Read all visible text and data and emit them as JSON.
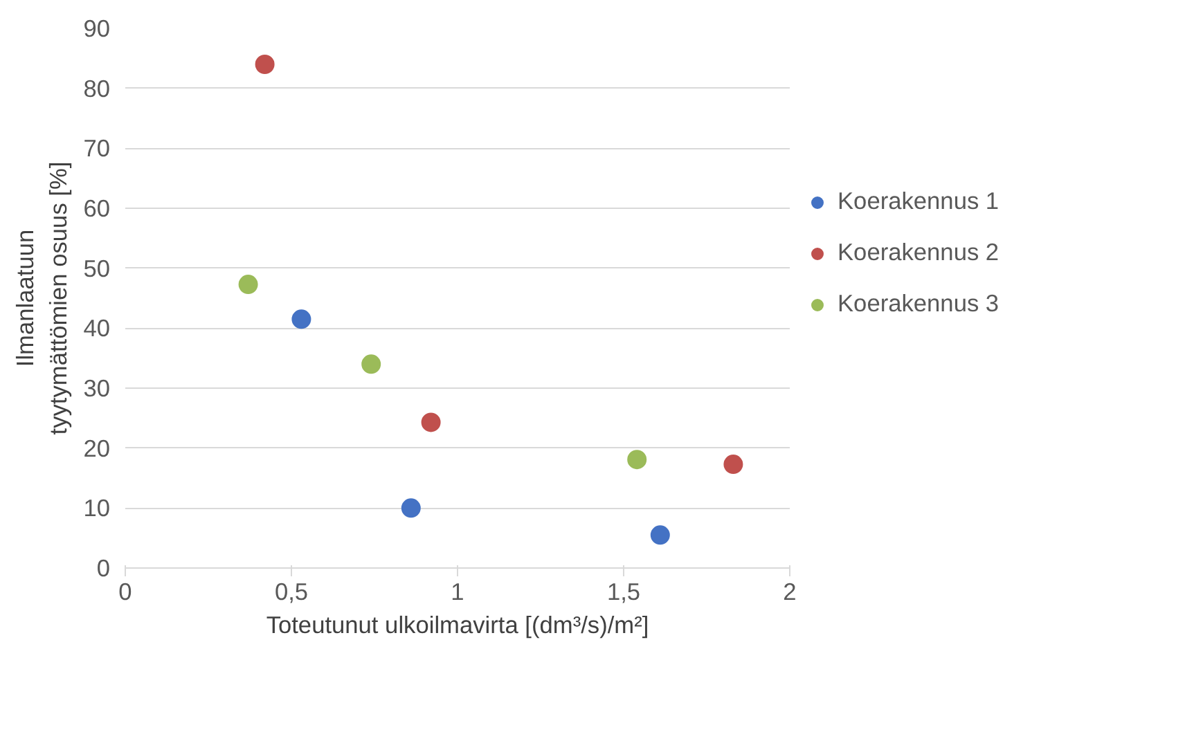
{
  "chart_data": {
    "type": "scatter",
    "xlabel": "Toteutunut ulkoilmavirta [(dm³/s)/m²]",
    "ylabel": "Ilmanlaatuun\ntyytymättömien osuus [%]",
    "xlim": [
      0,
      2
    ],
    "xticks": [
      0,
      {
        "value": 0.5,
        "label": "0,5"
      },
      1,
      {
        "value": 1.5,
        "label": "1,5"
      },
      2
    ],
    "ylim": [
      0,
      90
    ],
    "yticks": [
      0,
      10,
      20,
      30,
      40,
      50,
      60,
      70,
      80,
      90
    ],
    "grid": "y",
    "legend": "right",
    "marker": "circle",
    "series": [
      {
        "name": "Koerakennus 1",
        "color": "#4472c4",
        "x": [
          0.53,
          0.86,
          1.61
        ],
        "values": [
          41.5,
          10.0,
          5.5
        ]
      },
      {
        "name": "Koerakennus 2",
        "color": "#c0504d",
        "x": [
          0.42,
          0.92,
          1.83
        ],
        "values": [
          84.0,
          24.3,
          17.3
        ]
      },
      {
        "name": "Koerakennus 3",
        "color": "#9bbb59",
        "x": [
          0.37,
          0.74,
          1.54
        ],
        "values": [
          47.3,
          34.0,
          18.1
        ]
      }
    ]
  }
}
